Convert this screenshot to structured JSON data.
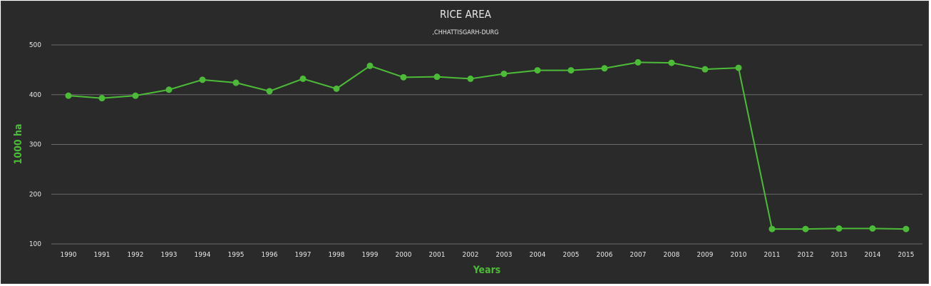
{
  "chart_data": {
    "type": "line",
    "title": "RICE AREA",
    "subtitle": ",CHHATTISGARH-DURG",
    "xlabel": "Years",
    "ylabel": "1000 ha",
    "ylim": [
      100,
      500
    ],
    "yticks": [
      500,
      400,
      300,
      200,
      100
    ],
    "grid": true,
    "colors": {
      "background": "#2a2a2a",
      "line": "#4cbb38",
      "grid": "#6a6a6a",
      "text": "#e6e6e6"
    },
    "categories": [
      "1990",
      "1991",
      "1992",
      "1993",
      "1994",
      "1995",
      "1996",
      "1997",
      "1998",
      "1999",
      "2000",
      "2001",
      "2002",
      "2003",
      "2004",
      "2005",
      "2006",
      "2007",
      "2008",
      "2009",
      "2010",
      "2011",
      "2012",
      "2013",
      "2014",
      "2015"
    ],
    "series": [
      {
        "values": [
          398,
          393,
          398,
          410,
          430,
          424,
          407,
          432,
          412,
          458,
          435,
          436,
          432,
          442,
          449,
          449,
          453,
          465,
          464,
          451,
          454,
          130,
          130,
          131,
          131,
          130
        ]
      }
    ]
  }
}
